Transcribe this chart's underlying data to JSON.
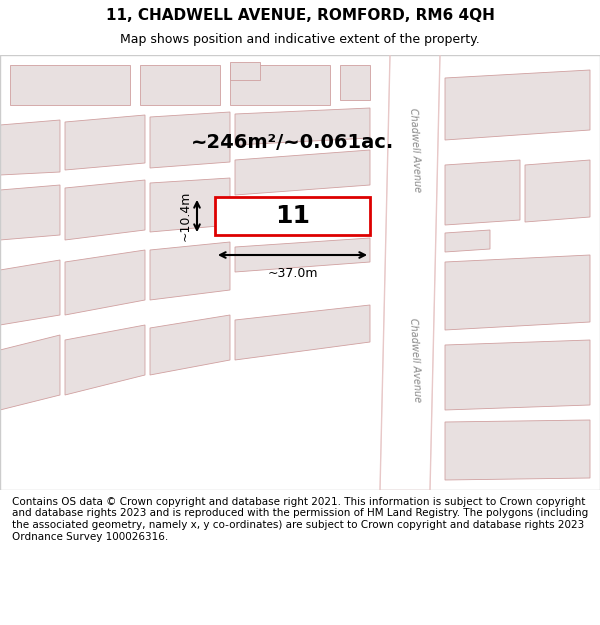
{
  "title": "11, CHADWELL AVENUE, ROMFORD, RM6 4QH",
  "subtitle": "Map shows position and indicative extent of the property.",
  "footer": "Contains OS data © Crown copyright and database right 2021. This information is subject to Crown copyright and database rights 2023 and is reproduced with the permission of HM Land Registry. The polygons (including the associated geometry, namely x, y co-ordinates) are subject to Crown copyright and database rights 2023 Ordnance Survey 100026316.",
  "bg_color": "#f5f5f5",
  "map_bg": "#f0eeee",
  "road_color": "#e8c8c8",
  "building_fill": "#e8e0e0",
  "building_edge": "#d0a0a0",
  "highlight_fill": "#ffffff",
  "highlight_edge": "#dd0000",
  "area_text": "~246m²/~0.061ac.",
  "number_text": "11",
  "width_text": "~37.0m",
  "height_text": "~10.4m",
  "road_label": "Chadwell Avenue",
  "title_fontsize": 11,
  "subtitle_fontsize": 9,
  "footer_fontsize": 7.5
}
